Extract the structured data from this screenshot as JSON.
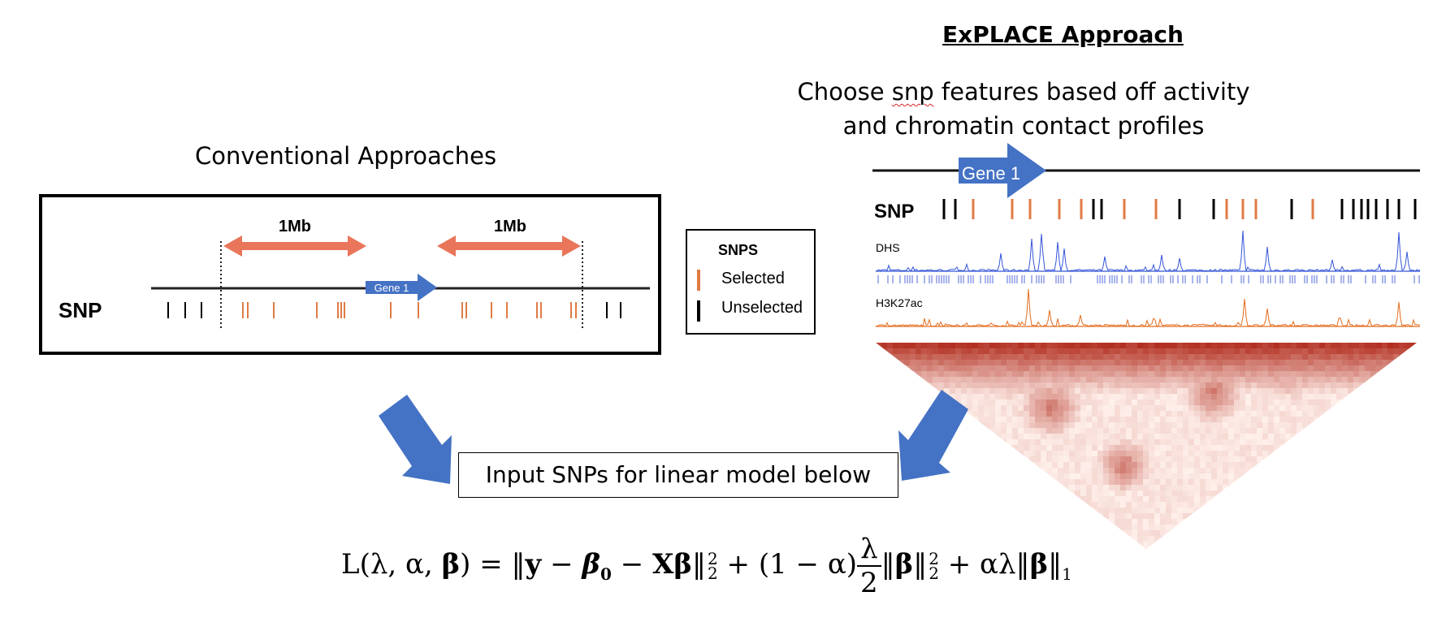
{
  "conventional": {
    "title": "Conventional Approaches",
    "snp_label": "SNP",
    "window_left_label": "1Mb",
    "window_right_label": "1Mb",
    "gene_label": "Gene 1"
  },
  "legend": {
    "title": "SNPS",
    "selected_label": "Selected",
    "unselected_label": "Unselected"
  },
  "explace": {
    "title": "ExPLACE Approach",
    "subtitle_line1_pre": "Choose ",
    "subtitle_line1_word": "snp",
    "subtitle_line1_post": " features based off activity",
    "subtitle_line2": "and chromatin contact profiles",
    "gene_label": "Gene 1",
    "snp_label": "SNP",
    "track_dhs_label": "DHS",
    "track_h3k27ac_label": "H3K27ac"
  },
  "input_box": {
    "label": "Input SNPs for linear model below"
  },
  "formula": {
    "lhs": "L(λ, α, ",
    "beta": "β",
    "eq": ") =  ‖",
    "y": "y",
    "minus1": "  − ",
    "beta0": "β",
    "zero": "0",
    "minus2": "  −  ",
    "X": "X",
    "beta2": "β",
    "norm2_close": "‖",
    "plus1": " + (1 − α)",
    "lambda": "λ",
    "two": "2",
    "norm3_open": "‖",
    "beta3": "β",
    "norm3_close": "‖",
    "plus2": " +  αλ‖",
    "beta4": "β",
    "norm4_close": "‖",
    "sub1": "1",
    "sub2": "2",
    "sup2": "2"
  },
  "colors": {
    "selected": "#e07b45",
    "unselected": "#000000",
    "gene_arrow": "#4472c4",
    "window_arrow": "#e9765a",
    "dhs": "#3355d8",
    "dhs_peaks": "#a9b4ee",
    "h3k27ac": "#e36c1e",
    "flow_arrow": "#4472c4",
    "hic": "#c83220"
  }
}
